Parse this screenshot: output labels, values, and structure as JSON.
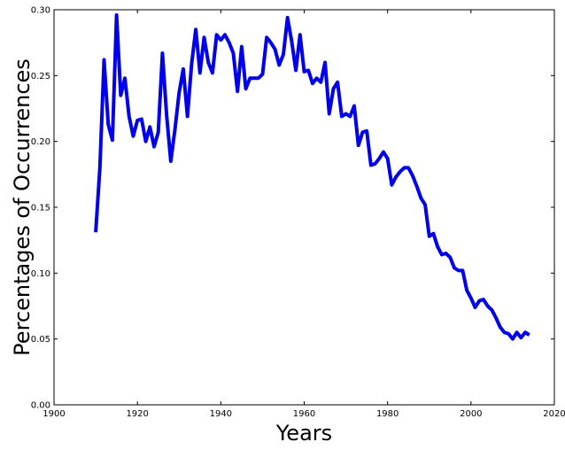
{
  "chart_data": {
    "type": "line",
    "title": "",
    "xlabel": "Years",
    "ylabel": "Percentages of Occurrences",
    "xlim": [
      1900,
      2020
    ],
    "ylim": [
      0.0,
      0.3
    ],
    "x_ticks": [
      1900,
      1920,
      1940,
      1960,
      1980,
      2000,
      2020
    ],
    "y_ticks": [
      0.0,
      0.05,
      0.1,
      0.15,
      0.2,
      0.25,
      0.3
    ],
    "x_tick_labels": [
      "1900",
      "1920",
      "1940",
      "1960",
      "1980",
      "2000",
      "2020"
    ],
    "y_tick_labels": [
      "0.00",
      "0.05",
      "0.10",
      "0.15",
      "0.20",
      "0.25",
      "0.30"
    ],
    "grid": false,
    "legend": "none",
    "series": [
      {
        "color": "#0000ee",
        "x": [
          1910,
          1911,
          1912,
          1913,
          1914,
          1915,
          1916,
          1917,
          1918,
          1919,
          1920,
          1921,
          1922,
          1923,
          1924,
          1925,
          1926,
          1927,
          1928,
          1929,
          1930,
          1931,
          1932,
          1933,
          1934,
          1935,
          1936,
          1937,
          1938,
          1939,
          1940,
          1941,
          1942,
          1943,
          1944,
          1945,
          1946,
          1947,
          1948,
          1949,
          1950,
          1951,
          1952,
          1953,
          1954,
          1955,
          1956,
          1957,
          1958,
          1959,
          1960,
          1961,
          1962,
          1963,
          1964,
          1965,
          1966,
          1967,
          1968,
          1969,
          1970,
          1971,
          1972,
          1973,
          1974,
          1975,
          1976,
          1977,
          1978,
          1979,
          1980,
          1981,
          1982,
          1983,
          1984,
          1985,
          1986,
          1987,
          1988,
          1989,
          1990,
          1991,
          1992,
          1993,
          1994,
          1995,
          1996,
          1997,
          1998,
          1999,
          2000,
          2001,
          2002,
          2003,
          2004,
          2005,
          2006,
          2007,
          2008,
          2009,
          2010,
          2011,
          2012,
          2013,
          2014
        ],
        "y": [
          0.131,
          0.18,
          0.262,
          0.213,
          0.201,
          0.296,
          0.235,
          0.248,
          0.219,
          0.204,
          0.216,
          0.217,
          0.2,
          0.211,
          0.196,
          0.207,
          0.267,
          0.22,
          0.185,
          0.209,
          0.237,
          0.255,
          0.219,
          0.259,
          0.285,
          0.252,
          0.279,
          0.26,
          0.252,
          0.281,
          0.277,
          0.281,
          0.275,
          0.267,
          0.238,
          0.272,
          0.24,
          0.248,
          0.248,
          0.248,
          0.251,
          0.279,
          0.275,
          0.27,
          0.258,
          0.266,
          0.294,
          0.276,
          0.254,
          0.281,
          0.253,
          0.254,
          0.244,
          0.248,
          0.245,
          0.26,
          0.221,
          0.24,
          0.245,
          0.219,
          0.221,
          0.219,
          0.227,
          0.197,
          0.207,
          0.208,
          0.182,
          0.183,
          0.187,
          0.192,
          0.187,
          0.167,
          0.173,
          0.177,
          0.18,
          0.18,
          0.174,
          0.166,
          0.157,
          0.152,
          0.128,
          0.13,
          0.12,
          0.114,
          0.115,
          0.112,
          0.104,
          0.102,
          0.102,
          0.087,
          0.081,
          0.074,
          0.079,
          0.08,
          0.075,
          0.072,
          0.066,
          0.059,
          0.055,
          0.054,
          0.05,
          0.055,
          0.051,
          0.055,
          0.053
        ]
      }
    ]
  }
}
